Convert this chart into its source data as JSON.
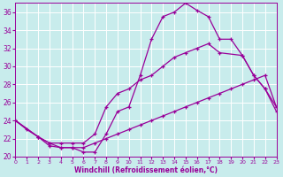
{
  "xlabel": "Windchill (Refroidissement éolien,°C)",
  "bg_color": "#c8ecec",
  "line_color": "#990099",
  "grid_color": "#ffffff",
  "xlim": [
    0,
    23
  ],
  "ylim": [
    20,
    37
  ],
  "yticks": [
    20,
    22,
    24,
    26,
    28,
    30,
    32,
    34,
    36
  ],
  "xticks": [
    0,
    1,
    2,
    3,
    4,
    5,
    6,
    7,
    8,
    9,
    10,
    11,
    12,
    13,
    14,
    15,
    16,
    17,
    18,
    19,
    20,
    21,
    22,
    23
  ],
  "line1_x": [
    0,
    1,
    2,
    3,
    4,
    5,
    6,
    7,
    8,
    9,
    10,
    11,
    12,
    13,
    14,
    15,
    16,
    17,
    18,
    19,
    20,
    21,
    22,
    23
  ],
  "line1_y": [
    24.0,
    23.0,
    22.2,
    21.2,
    21.0,
    21.0,
    20.5,
    20.5,
    22.5,
    25.0,
    25.5,
    29.0,
    33.0,
    35.5,
    36.0,
    37.0,
    36.2,
    35.5,
    33.0,
    33.0,
    31.2,
    29.0,
    27.5,
    25.0
  ],
  "line2_x": [
    0,
    2,
    3,
    4,
    5,
    6,
    7,
    8,
    9,
    10,
    11,
    12,
    13,
    14,
    15,
    16,
    17,
    18,
    20,
    21,
    22,
    23
  ],
  "line2_y": [
    24.0,
    22.2,
    21.5,
    21.5,
    21.5,
    21.5,
    22.5,
    25.5,
    27.0,
    27.5,
    28.5,
    29.0,
    30.0,
    31.0,
    31.5,
    32.0,
    32.5,
    31.5,
    31.2,
    29.0,
    27.5,
    25.5
  ],
  "line3_x": [
    0,
    2,
    3,
    4,
    5,
    6,
    7,
    8,
    9,
    10,
    11,
    12,
    13,
    14,
    15,
    16,
    17,
    18,
    19,
    20,
    21,
    22,
    23
  ],
  "line3_y": [
    24.0,
    22.2,
    21.5,
    21.0,
    21.0,
    21.0,
    21.5,
    22.0,
    22.5,
    23.0,
    23.5,
    24.0,
    24.5,
    25.0,
    25.5,
    26.0,
    26.5,
    27.0,
    27.5,
    28.0,
    28.5,
    29.0,
    25.5
  ]
}
